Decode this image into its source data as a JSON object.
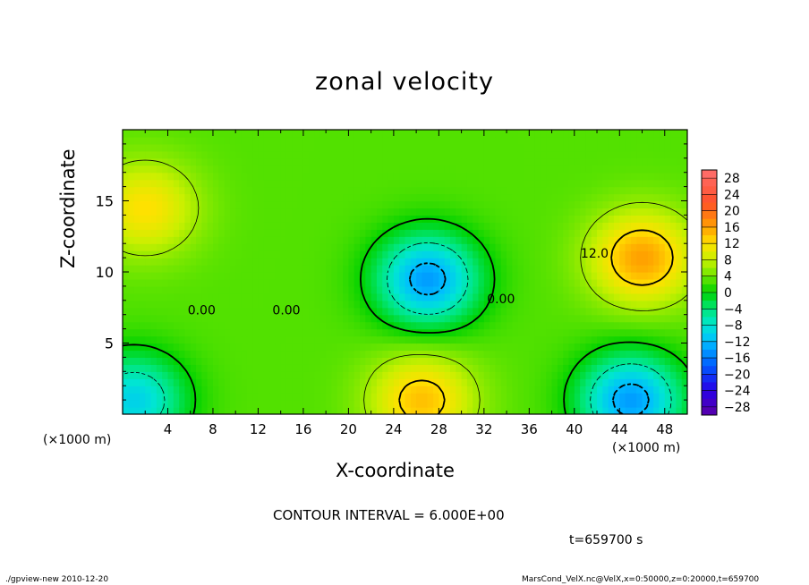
{
  "chart_data": {
    "type": "heatmap",
    "title": "zonal velocity",
    "xlabel": "X-coordinate",
    "ylabel": "Z-coordinate",
    "x_unit": "(×1000 m)",
    "xlim": [
      0,
      50
    ],
    "ylim": [
      0,
      20
    ],
    "x_ticks": [
      4,
      8,
      12,
      16,
      20,
      24,
      28,
      32,
      36,
      40,
      44,
      48
    ],
    "y_ticks": [
      5,
      10,
      15
    ],
    "colorbar_levels": [
      28,
      24,
      20,
      16,
      12,
      8,
      4,
      0,
      -4,
      -8,
      -12,
      -16,
      -20,
      -24,
      -28
    ],
    "colorbar_range": [
      -30,
      30
    ],
    "contour_labels": [
      {
        "text": "0.00",
        "x": 7.0,
        "y": 7.0
      },
      {
        "text": "0.00",
        "x": 14.5,
        "y": 7.0
      },
      {
        "text": "0.00",
        "x": 33.5,
        "y": 7.8
      },
      {
        "text": "12.0",
        "x": 41.8,
        "y": 11.0
      }
    ],
    "field_features": [
      {
        "kind": "max",
        "x": 2,
        "y": 14.5,
        "value": 12
      },
      {
        "kind": "max",
        "x": 46,
        "y": 11,
        "value": 16
      },
      {
        "kind": "max",
        "x": 26.5,
        "y": 1,
        "value": 14
      },
      {
        "kind": "min",
        "x": 27,
        "y": 9.5,
        "value": -14
      },
      {
        "kind": "min",
        "x": 45,
        "y": 1,
        "value": -14
      },
      {
        "kind": "min",
        "x": 1,
        "y": 1,
        "value": -10
      }
    ],
    "contour_interval": "CONTOUR INTERVAL = 6.000E+00",
    "time_label": "t=659700 s"
  },
  "footer": {
    "left": "./gpview-new  2010-12-20",
    "right": "MarsCond_VelX.nc@VelX,x=0:50000,z=0:20000,t=659700"
  },
  "colors": {
    "pos_high": "#ff6f6f",
    "neg_low": "#5c00a8",
    "zero": "#00d000"
  }
}
